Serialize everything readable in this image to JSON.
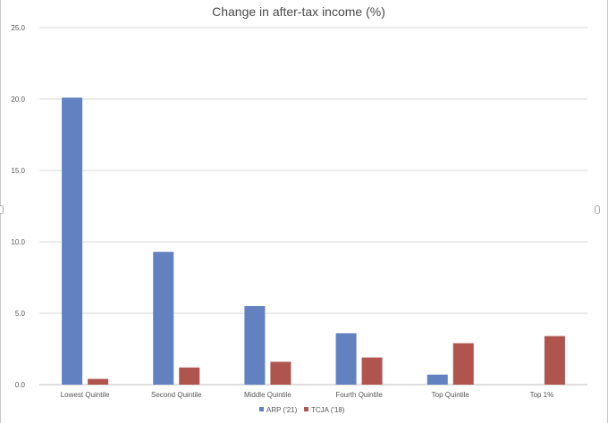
{
  "chart_data": {
    "type": "bar",
    "title": "Change in after-tax income (%)",
    "xlabel": "",
    "ylabel": "",
    "categories": [
      "Lowest Quintile",
      "Second Quintile",
      "Middle Quintile",
      "Fourth Quintile",
      "Top Quintile",
      "Top 1%"
    ],
    "series": [
      {
        "name": "ARP ('21)",
        "color": "#6181c0",
        "values": [
          20.1,
          9.3,
          5.5,
          3.6,
          0.7,
          null
        ]
      },
      {
        "name": "TCJA ('18)",
        "color": "#b0544e",
        "values": [
          0.4,
          1.2,
          1.6,
          1.9,
          2.9,
          3.4
        ]
      }
    ],
    "ylim": [
      0,
      25
    ],
    "yticks": [
      "0.0",
      "5.0",
      "10.0",
      "15.0",
      "20.0",
      "25.0"
    ],
    "grid": true,
    "legend_position": "bottom"
  }
}
